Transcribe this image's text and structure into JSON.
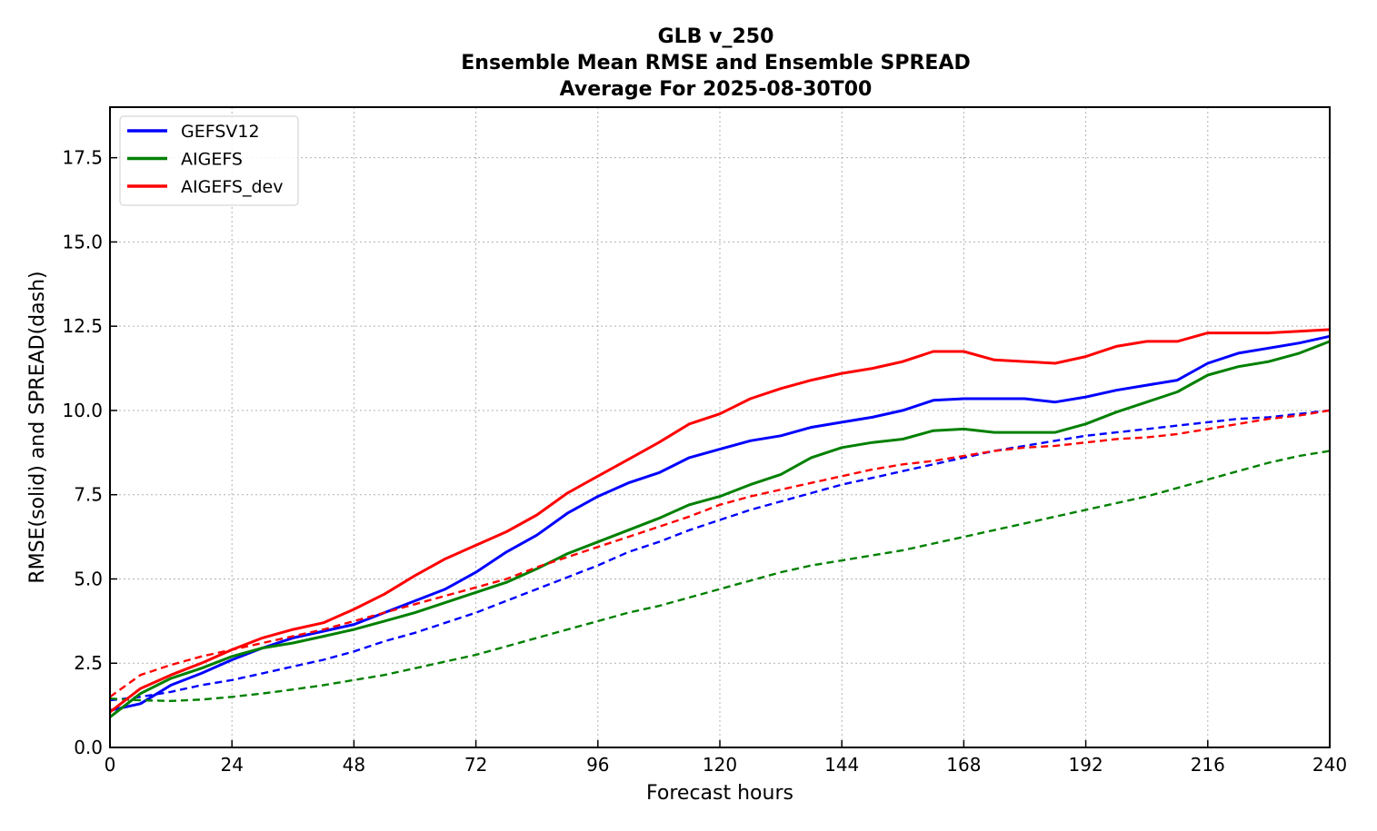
{
  "chart_data": {
    "type": "line",
    "title_lines": [
      "GLB v_250",
      "Ensemble Mean RMSE and Ensemble SPREAD",
      "Average For 2025-08-30T00"
    ],
    "xlabel": "Forecast hours",
    "ylabel": "RMSE(solid) and SPREAD(dash)",
    "xlim": [
      0,
      240
    ],
    "ylim": [
      0,
      19
    ],
    "xticks": [
      0,
      24,
      48,
      72,
      96,
      120,
      144,
      168,
      192,
      216,
      240
    ],
    "yticks": [
      0.0,
      2.5,
      5.0,
      7.5,
      10.0,
      12.5,
      15.0,
      17.5
    ],
    "ytick_labels": [
      "0.0",
      "2.5",
      "5.0",
      "7.5",
      "10.0",
      "12.5",
      "15.0",
      "17.5"
    ],
    "grid": true,
    "legend_position": "top-left",
    "x": [
      0,
      6,
      12,
      18,
      24,
      30,
      36,
      42,
      48,
      54,
      60,
      66,
      72,
      78,
      84,
      90,
      96,
      102,
      108,
      114,
      120,
      126,
      132,
      138,
      144,
      150,
      156,
      162,
      168,
      174,
      180,
      186,
      192,
      198,
      204,
      210,
      216,
      222,
      228,
      234,
      240
    ],
    "series": [
      {
        "name": "GEFSV12",
        "metric": "RMSE",
        "color": "#0000ff",
        "style": "solid",
        "values": [
          1.1,
          1.3,
          1.85,
          2.2,
          2.6,
          2.95,
          3.25,
          3.45,
          3.65,
          4.0,
          4.35,
          4.7,
          5.2,
          5.8,
          6.3,
          6.95,
          7.45,
          7.85,
          8.15,
          8.6,
          8.85,
          9.1,
          9.25,
          9.5,
          9.65,
          9.8,
          10.0,
          10.3,
          10.35,
          10.35,
          10.35,
          10.25,
          10.4,
          10.6,
          10.75,
          10.9,
          11.4,
          11.7,
          11.85,
          12.0,
          12.2
        ]
      },
      {
        "name": "GEFSV12",
        "metric": "SPREAD",
        "color": "#0000ff",
        "style": "dashed",
        "values": [
          1.4,
          1.5,
          1.65,
          1.85,
          2.0,
          2.2,
          2.4,
          2.6,
          2.85,
          3.15,
          3.4,
          3.7,
          4.0,
          4.35,
          4.7,
          5.05,
          5.4,
          5.8,
          6.1,
          6.45,
          6.75,
          7.05,
          7.3,
          7.55,
          7.8,
          8.0,
          8.2,
          8.4,
          8.6,
          8.8,
          8.95,
          9.1,
          9.25,
          9.35,
          9.45,
          9.55,
          9.65,
          9.75,
          9.8,
          9.9,
          10.0
        ]
      },
      {
        "name": "AIGEFS",
        "metric": "RMSE",
        "color": "#008000",
        "style": "solid",
        "values": [
          0.9,
          1.6,
          2.05,
          2.35,
          2.7,
          2.95,
          3.1,
          3.3,
          3.5,
          3.75,
          4.0,
          4.3,
          4.6,
          4.9,
          5.3,
          5.75,
          6.1,
          6.45,
          6.8,
          7.2,
          7.45,
          7.8,
          8.1,
          8.6,
          8.9,
          9.05,
          9.15,
          9.4,
          9.45,
          9.35,
          9.35,
          9.35,
          9.6,
          9.95,
          10.25,
          10.55,
          11.05,
          11.3,
          11.45,
          11.7,
          12.05
        ]
      },
      {
        "name": "AIGEFS",
        "metric": "SPREAD",
        "color": "#008000",
        "style": "dashed",
        "values": [
          1.45,
          1.4,
          1.38,
          1.42,
          1.5,
          1.6,
          1.72,
          1.85,
          2.0,
          2.15,
          2.35,
          2.55,
          2.75,
          3.0,
          3.25,
          3.5,
          3.75,
          4.0,
          4.2,
          4.45,
          4.7,
          4.95,
          5.2,
          5.4,
          5.55,
          5.7,
          5.85,
          6.05,
          6.25,
          6.45,
          6.65,
          6.85,
          7.05,
          7.25,
          7.45,
          7.7,
          7.95,
          8.2,
          8.45,
          8.65,
          8.8
        ]
      },
      {
        "name": "AIGEFS_dev",
        "metric": "RMSE",
        "color": "#ff0000",
        "style": "solid",
        "values": [
          1.05,
          1.75,
          2.15,
          2.5,
          2.9,
          3.25,
          3.5,
          3.7,
          4.1,
          4.55,
          5.1,
          5.6,
          6.0,
          6.4,
          6.9,
          7.55,
          8.05,
          8.55,
          9.05,
          9.6,
          9.9,
          10.35,
          10.65,
          10.9,
          11.1,
          11.25,
          11.45,
          11.75,
          11.75,
          11.5,
          11.45,
          11.4,
          11.6,
          11.9,
          12.05,
          12.05,
          12.3,
          12.3,
          12.3,
          12.35,
          12.4
        ]
      },
      {
        "name": "AIGEFS_dev",
        "metric": "SPREAD",
        "color": "#ff0000",
        "style": "dashed",
        "values": [
          1.5,
          2.15,
          2.45,
          2.7,
          2.9,
          3.1,
          3.3,
          3.5,
          3.75,
          4.0,
          4.25,
          4.5,
          4.75,
          5.0,
          5.35,
          5.65,
          5.95,
          6.25,
          6.55,
          6.85,
          7.2,
          7.45,
          7.65,
          7.85,
          8.05,
          8.25,
          8.4,
          8.5,
          8.65,
          8.8,
          8.9,
          8.95,
          9.05,
          9.15,
          9.2,
          9.3,
          9.45,
          9.6,
          9.75,
          9.85,
          10.0
        ]
      }
    ],
    "legend": [
      {
        "label": "GEFSV12",
        "color": "#0000ff"
      },
      {
        "label": "AIGEFS",
        "color": "#008000"
      },
      {
        "label": "AIGEFS_dev",
        "color": "#ff0000"
      }
    ]
  }
}
